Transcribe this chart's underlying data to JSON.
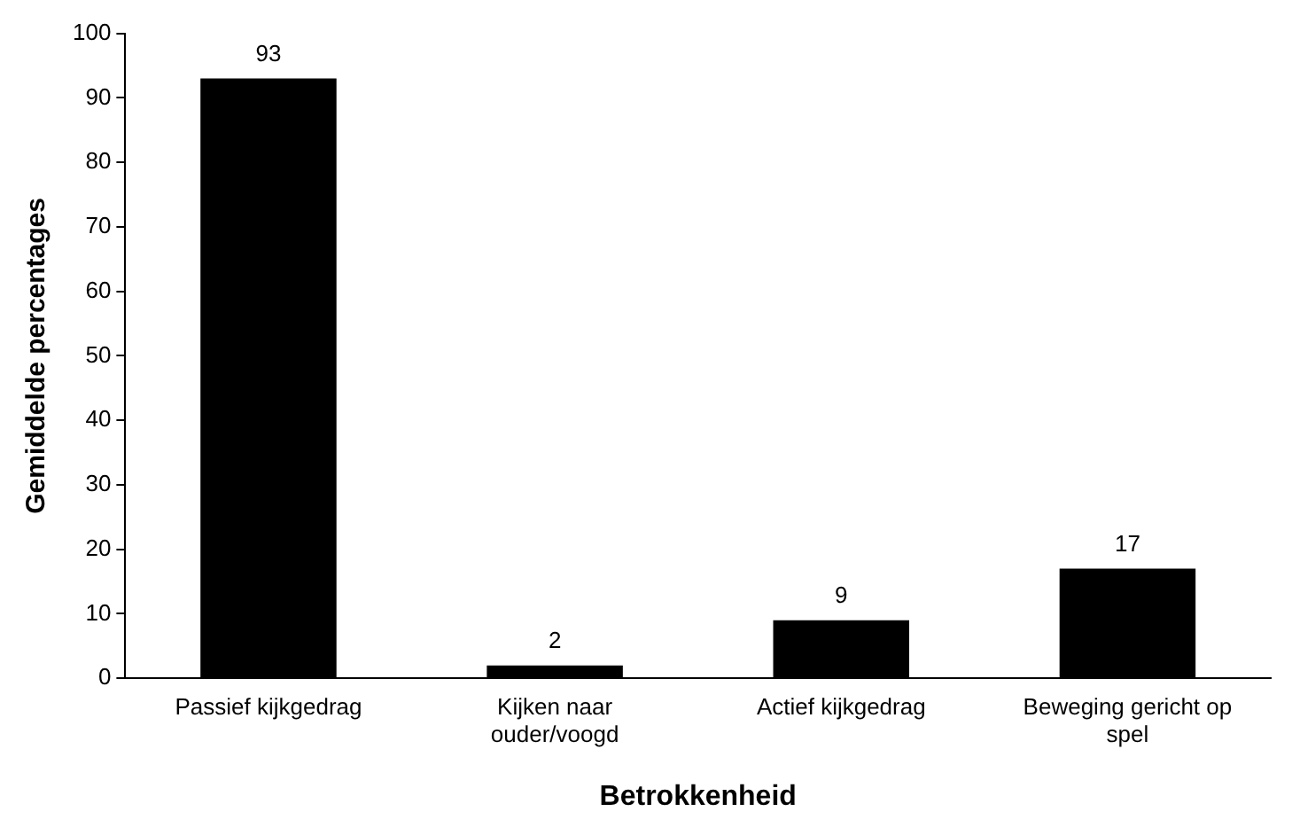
{
  "chart_data": {
    "type": "bar",
    "xlabel": "Betrokkenheid",
    "ylabel": "Gemiddelde percentages",
    "categories": [
      "Passief kijkgedrag",
      "Kijken naar ouder/voogd",
      "Actief kijkgedrag",
      "Beweging gericht op spel"
    ],
    "values": [
      93,
      2,
      9,
      17
    ],
    "color": "#000000",
    "ylim": [
      0,
      100
    ],
    "yticks": [
      0,
      10,
      20,
      30,
      40,
      50,
      60,
      70,
      80,
      90,
      100
    ],
    "grid": false,
    "legend": false,
    "data_labels": true
  }
}
